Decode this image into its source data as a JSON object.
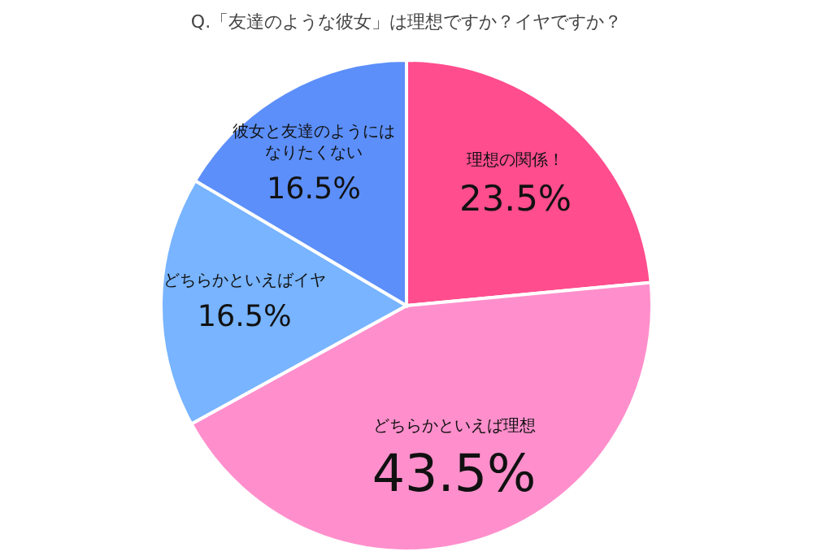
{
  "chart_data": {
    "type": "pie",
    "title": "Q.「友達のような彼女」は理想ですか？イヤですか？",
    "categories": [
      "理想の関係！",
      "どちらかといえば理想",
      "どちらかといえばイヤ",
      "彼女と友達のようにはなりたくない"
    ],
    "values": [
      23.5,
      43.5,
      16.5,
      16.5
    ],
    "colors": [
      "#ff4d8d",
      "#ff8fcc",
      "#78b4ff",
      "#5c8ffa"
    ],
    "value_labels": [
      "23.5%",
      "43.5%",
      "16.5%",
      "16.5%"
    ]
  }
}
